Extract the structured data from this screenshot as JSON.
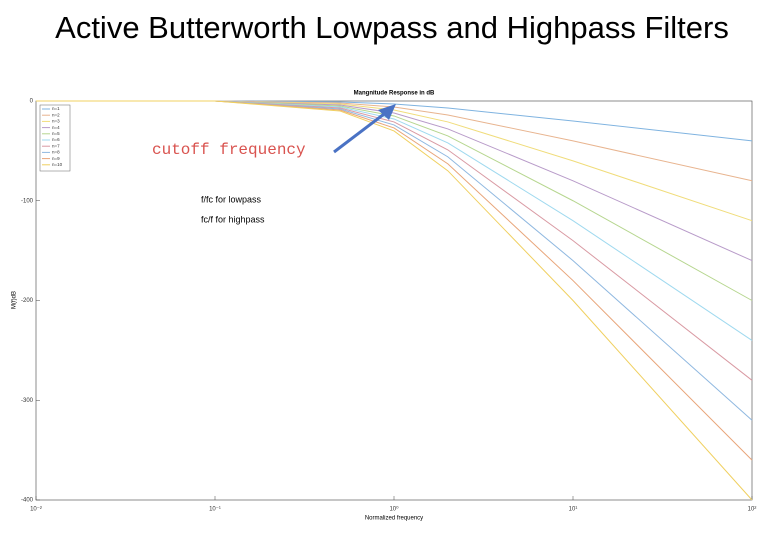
{
  "slide_title": "Active Butterworth Lowpass and Highpass Filters",
  "chart_data": {
    "type": "line",
    "title": "Mangnitude Response in dB",
    "xlabel": "Normalized frequency",
    "ylabel": "M(f)dB",
    "log_x": true,
    "x": [
      0.01,
      0.1,
      0.5,
      1,
      2,
      10,
      100
    ],
    "xlim": [
      0.01,
      100
    ],
    "xticks": [
      {
        "value": 0.01,
        "label": "10⁻²"
      },
      {
        "value": 0.1,
        "label": "10⁻¹"
      },
      {
        "value": 1,
        "label": "10⁰"
      },
      {
        "value": 10,
        "label": "10¹"
      },
      {
        "value": 100,
        "label": "10²"
      }
    ],
    "ylim": [
      -400,
      0
    ],
    "yticks": [
      0,
      -100,
      -200,
      -300,
      -400
    ],
    "legend": "upper left",
    "series": [
      {
        "name": "n=1",
        "color": "#7fb3e0",
        "values": [
          0,
          0,
          -1,
          -3,
          -7,
          -20,
          -40
        ]
      },
      {
        "name": "n=2",
        "color": "#e8b48f",
        "values": [
          0,
          0,
          -2,
          -6,
          -14,
          -40,
          -80
        ]
      },
      {
        "name": "n=3",
        "color": "#f0dc7a",
        "values": [
          0,
          0,
          -3,
          -9,
          -21,
          -60,
          -120
        ]
      },
      {
        "name": "n=4",
        "color": "#b89bc9",
        "values": [
          0,
          0,
          -4,
          -12,
          -28,
          -80,
          -160
        ]
      },
      {
        "name": "n=5",
        "color": "#b6d68f",
        "values": [
          0,
          0,
          -5,
          -15,
          -35,
          -100,
          -200
        ]
      },
      {
        "name": "n=6",
        "color": "#9fd9ef",
        "values": [
          0,
          0,
          -6,
          -18,
          -42,
          -120,
          -240
        ]
      },
      {
        "name": "n=7",
        "color": "#d99aa3",
        "values": [
          0,
          0,
          -7,
          -21,
          -49,
          -140,
          -280
        ]
      },
      {
        "name": "n=8",
        "color": "#8fb8e0",
        "values": [
          0,
          0,
          -8,
          -24,
          -56,
          -160,
          -320
        ]
      },
      {
        "name": "n=9",
        "color": "#e8a57a",
        "values": [
          0,
          0,
          -9,
          -27,
          -63,
          -180,
          -360
        ]
      },
      {
        "name": "n=10",
        "color": "#f0d060",
        "values": [
          0,
          0,
          -10,
          -30,
          -70,
          -200,
          -400
        ]
      }
    ],
    "annotations": [
      "cutoff frequency",
      "f/fc for lowpass",
      "fc/f for highpass"
    ]
  }
}
